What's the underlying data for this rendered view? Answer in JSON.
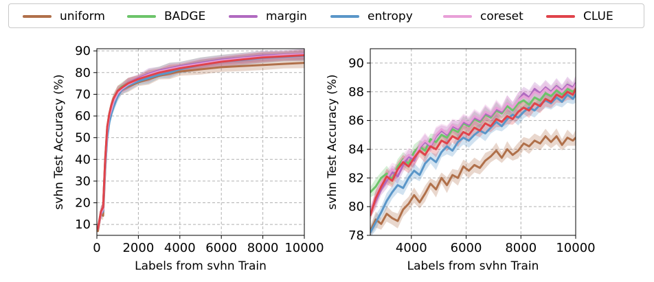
{
  "legend": [
    {
      "label": "uniform",
      "color": "#b0704a"
    },
    {
      "label": "BADGE",
      "color": "#6cc46a"
    },
    {
      "label": "margin",
      "color": "#b06ac0"
    },
    {
      "label": "entropy",
      "color": "#5a96c8"
    },
    {
      "label": "coreset",
      "color": "#e8a0d8"
    },
    {
      "label": "CLUE",
      "color": "#e0434a"
    }
  ],
  "chart_data": [
    {
      "type": "line",
      "title": "",
      "xlabel": "Labels from svhn Train",
      "ylabel": "svhn Test Accuracy (%)",
      "xlim": [
        0,
        10000
      ],
      "ylim": [
        5,
        91
      ],
      "xticks": [
        0,
        2000,
        4000,
        6000,
        8000,
        10000
      ],
      "xtick_labels": [
        "0",
        "2000",
        "4000",
        "6000",
        "8000",
        "10000"
      ],
      "yticks": [
        10,
        20,
        30,
        40,
        50,
        60,
        70,
        80,
        90
      ],
      "ytick_labels": [
        "10",
        "20",
        "30",
        "40",
        "50",
        "60",
        "70",
        "80",
        "90"
      ],
      "grid": true,
      "shaded_band": true,
      "series": [
        {
          "name": "uniform",
          "x": [
            50,
            200,
            300,
            400,
            500,
            600,
            700,
            800,
            1000,
            1200,
            1500,
            2000,
            2500,
            3000,
            3500,
            4000,
            5000,
            6000,
            7000,
            8000,
            9000,
            10000
          ],
          "values": [
            7,
            15,
            14,
            35,
            52,
            58,
            62,
            66,
            70,
            72,
            73.5,
            75.5,
            77,
            78.5,
            79.5,
            80.5,
            81.5,
            82.5,
            83,
            83.5,
            84,
            84.5
          ]
        },
        {
          "name": "BADGE",
          "x": [
            50,
            200,
            300,
            400,
            500,
            600,
            700,
            800,
            1000,
            1200,
            1500,
            2000,
            2500,
            3000,
            3500,
            4000,
            5000,
            6000,
            7000,
            8000,
            9000,
            10000
          ],
          "values": [
            8,
            16,
            18,
            40,
            55,
            61,
            65,
            68,
            71.5,
            73.5,
            75,
            77,
            79,
            81,
            82,
            83,
            84.5,
            86,
            86.8,
            87.5,
            88,
            88.3
          ]
        },
        {
          "name": "margin",
          "x": [
            50,
            200,
            300,
            400,
            500,
            600,
            700,
            800,
            1000,
            1200,
            1500,
            2000,
            2500,
            3000,
            3500,
            4000,
            5000,
            6000,
            7000,
            8000,
            9000,
            10000
          ],
          "values": [
            8,
            16,
            18,
            39,
            54,
            60,
            64,
            67,
            71,
            73,
            75,
            77.5,
            79.5,
            81,
            82,
            83,
            84.5,
            86,
            86.8,
            87.8,
            88.2,
            88.5
          ]
        },
        {
          "name": "entropy",
          "x": [
            50,
            200,
            300,
            400,
            500,
            600,
            700,
            800,
            1000,
            1200,
            1500,
            2000,
            2500,
            3000,
            3500,
            4000,
            5000,
            6000,
            7000,
            8000,
            9000,
            10000
          ],
          "values": [
            8,
            15,
            16,
            36,
            50,
            57,
            61,
            64,
            69,
            72,
            74,
            76,
            77.5,
            79,
            80,
            81.5,
            83.5,
            85,
            85.8,
            86.8,
            87.3,
            87.8
          ]
        },
        {
          "name": "coreset",
          "x": [
            50,
            200,
            300,
            400,
            500,
            600,
            700,
            800,
            1000,
            1200,
            1500,
            2000,
            2500,
            3000,
            3500,
            4000,
            5000,
            6000,
            7000,
            8000,
            9000,
            10000
          ],
          "values": [
            8,
            15,
            17,
            38,
            53,
            60,
            63,
            66.5,
            70.5,
            72.5,
            74.5,
            77,
            79,
            80.5,
            81.5,
            82.5,
            84,
            85.5,
            86.5,
            87.3,
            88,
            88.3
          ]
        },
        {
          "name": "CLUE",
          "x": [
            50,
            200,
            300,
            400,
            500,
            600,
            700,
            800,
            1000,
            1200,
            1500,
            2000,
            2500,
            3000,
            3500,
            4000,
            5000,
            6000,
            7000,
            8000,
            9000,
            10000
          ],
          "values": [
            8,
            16,
            18,
            40,
            55,
            61,
            65,
            68,
            71.5,
            73,
            75,
            77,
            78.5,
            80,
            81,
            82,
            83.5,
            85,
            86,
            87,
            87.5,
            88
          ]
        }
      ]
    },
    {
      "type": "line",
      "title": "",
      "xlabel": "Labels from svhn Train",
      "ylabel": "svhn Test Accuracy (%)",
      "xlim": [
        2500,
        10000
      ],
      "ylim": [
        78,
        91
      ],
      "xticks": [
        4000,
        6000,
        8000,
        10000
      ],
      "xtick_labels": [
        "4000",
        "6000",
        "8000",
        "10000"
      ],
      "yticks": [
        78,
        80,
        82,
        84,
        86,
        88,
        90
      ],
      "ytick_labels": [
        "78",
        "80",
        "82",
        "84",
        "86",
        "88",
        "90"
      ],
      "grid": true,
      "shaded_band": true,
      "series": [
        {
          "name": "uniform",
          "x": [
            2500,
            2700,
            2900,
            3100,
            3300,
            3500,
            3700,
            3900,
            4100,
            4300,
            4500,
            4700,
            4900,
            5100,
            5300,
            5500,
            5700,
            5900,
            6100,
            6300,
            6500,
            6700,
            6900,
            7100,
            7300,
            7500,
            7700,
            7900,
            8100,
            8300,
            8500,
            8700,
            8900,
            9100,
            9300,
            9500,
            9700,
            9900,
            10000
          ],
          "values": [
            78.3,
            79.1,
            78.8,
            79.5,
            79.2,
            79.0,
            79.8,
            80.2,
            80.8,
            80.3,
            80.9,
            81.6,
            81.2,
            82.0,
            81.5,
            82.2,
            82.0,
            82.8,
            82.5,
            82.9,
            82.7,
            83.2,
            83.5,
            83.9,
            83.4,
            84.0,
            83.6,
            83.9,
            84.4,
            84.2,
            84.6,
            84.4,
            84.9,
            84.5,
            84.9,
            84.3,
            84.8,
            84.6,
            84.8
          ]
        },
        {
          "name": "BADGE",
          "x": [
            2500,
            2700,
            2900,
            3100,
            3300,
            3500,
            3700,
            3900,
            4100,
            4300,
            4500,
            4700,
            4900,
            5100,
            5300,
            5500,
            5700,
            5900,
            6100,
            6300,
            6500,
            6700,
            6900,
            7100,
            7300,
            7500,
            7700,
            7900,
            8100,
            8300,
            8500,
            8700,
            8900,
            9100,
            9300,
            9500,
            9700,
            9900,
            10000
          ],
          "values": [
            81.0,
            81.4,
            82.0,
            82.3,
            81.9,
            82.8,
            83.3,
            83.0,
            83.8,
            84.2,
            83.9,
            84.7,
            84.5,
            85.0,
            84.8,
            85.4,
            85.2,
            85.8,
            85.6,
            86.1,
            85.9,
            86.4,
            86.2,
            86.7,
            86.5,
            87.0,
            86.7,
            87.2,
            87.4,
            87.1,
            87.6,
            87.4,
            87.9,
            87.7,
            88.1,
            87.8,
            88.2,
            88.0,
            88.3
          ]
        },
        {
          "name": "margin",
          "x": [
            2500,
            2700,
            2900,
            3100,
            3300,
            3500,
            3700,
            3900,
            4100,
            4300,
            4500,
            4700,
            4900,
            5100,
            5300,
            5500,
            5700,
            5900,
            6100,
            6300,
            6500,
            6700,
            6900,
            7100,
            7300,
            7500,
            7700,
            7900,
            8100,
            8300,
            8500,
            8700,
            8900,
            9100,
            9300,
            9500,
            9700,
            9900,
            10000
          ],
          "values": [
            79.6,
            80.4,
            81.2,
            81.8,
            82.4,
            82.1,
            82.9,
            83.5,
            83.2,
            84.1,
            84.5,
            84.2,
            84.9,
            85.3,
            85.0,
            85.6,
            85.4,
            85.9,
            85.7,
            86.2,
            86.0,
            86.5,
            86.3,
            86.8,
            86.6,
            87.2,
            86.9,
            87.4,
            87.9,
            87.6,
            88.2,
            87.9,
            88.3,
            88.0,
            88.4,
            88.1,
            88.5,
            88.3,
            88.6
          ]
        },
        {
          "name": "entropy",
          "x": [
            2500,
            2700,
            2900,
            3100,
            3300,
            3500,
            3700,
            3900,
            4100,
            4300,
            4500,
            4700,
            4900,
            5100,
            5300,
            5500,
            5700,
            5900,
            6100,
            6300,
            6500,
            6700,
            6900,
            7100,
            7300,
            7500,
            7700,
            7900,
            8100,
            8300,
            8500,
            8700,
            8900,
            9100,
            9300,
            9500,
            9700,
            9900,
            10000
          ],
          "values": [
            78.2,
            78.9,
            79.6,
            80.4,
            81.0,
            81.5,
            81.3,
            82.0,
            82.5,
            82.2,
            83.0,
            83.4,
            83.1,
            83.8,
            84.2,
            83.9,
            84.5,
            84.8,
            84.6,
            85.0,
            85.3,
            85.1,
            85.5,
            85.9,
            85.6,
            86.1,
            86.4,
            86.2,
            86.6,
            86.9,
            86.7,
            87.1,
            87.4,
            87.2,
            87.6,
            87.3,
            87.8,
            87.5,
            87.8
          ]
        },
        {
          "name": "coreset",
          "x": [
            2500,
            2700,
            2900,
            3100,
            3300,
            3500,
            3700,
            3900,
            4100,
            4300,
            4500,
            4700,
            4900,
            5100,
            5300,
            5500,
            5700,
            5900,
            6100,
            6300,
            6500,
            6700,
            6900,
            7100,
            7300,
            7500,
            7700,
            7900,
            8100,
            8300,
            8500,
            8700,
            8900,
            9100,
            9300,
            9500,
            9700,
            9900,
            10000
          ],
          "values": [
            79.6,
            80.6,
            81.6,
            82.0,
            82.6,
            82.4,
            83.2,
            83.6,
            83.4,
            84.2,
            84.6,
            84.3,
            85.0,
            85.4,
            85.1,
            85.7,
            85.5,
            86.0,
            85.8,
            86.3,
            86.1,
            86.6,
            86.4,
            86.9,
            86.7,
            87.2,
            86.9,
            87.4,
            87.7,
            87.5,
            88.0,
            87.8,
            88.2,
            87.9,
            88.3,
            88.0,
            88.4,
            88.2,
            88.5
          ]
        },
        {
          "name": "CLUE",
          "x": [
            2500,
            2700,
            2900,
            3100,
            3300,
            3500,
            3700,
            3900,
            4100,
            4300,
            4500,
            4700,
            4900,
            5100,
            5300,
            5500,
            5700,
            5900,
            6100,
            6300,
            6500,
            6700,
            6900,
            7100,
            7300,
            7500,
            7700,
            7900,
            8100,
            8300,
            8500,
            8700,
            8900,
            9100,
            9300,
            9500,
            9700,
            9900,
            10000
          ],
          "values": [
            79.4,
            80.6,
            81.4,
            82.1,
            81.8,
            82.6,
            83.1,
            82.8,
            83.4,
            83.9,
            83.6,
            84.2,
            84.0,
            84.6,
            84.4,
            84.9,
            84.7,
            85.2,
            85.0,
            85.5,
            85.3,
            85.8,
            85.6,
            86.1,
            85.9,
            86.3,
            86.1,
            86.6,
            86.9,
            86.7,
            87.2,
            87.0,
            87.5,
            87.3,
            87.8,
            87.6,
            88.0,
            87.8,
            88.2
          ]
        }
      ]
    }
  ]
}
